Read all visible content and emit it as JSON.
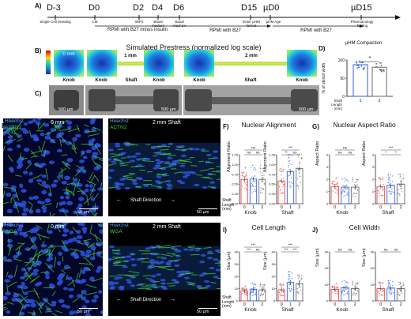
{
  "panelA": {
    "label": "A)",
    "timepoints": [
      {
        "label": "D-3",
        "sub": "Single Cell Seeding"
      },
      {
        "label": "D0",
        "sub": "CM"
      },
      {
        "label": "D2",
        "sub": "IWP2"
      },
      {
        "label": "D4",
        "sub": "Basal medium"
      },
      {
        "label": "D6",
        "sub": "Basal medium"
      },
      {
        "label": "D15",
        "sub": "Enter µHM format"
      },
      {
        "label": "µD0",
        "sub": "µHM Age"
      },
      {
        "label": "µD15",
        "sub": "Pharmacology Testing"
      }
    ],
    "media": [
      "RPMI with B27 minus insulin",
      "RPMI with B27",
      "RPMI with B27"
    ]
  },
  "panelB": {
    "label": "B)",
    "title": "Simulated Prestress (normalized log scale)",
    "labels": [
      "0 mm",
      "1 mm",
      "2 mm"
    ],
    "parts": [
      "Knob",
      "Knob",
      "Shaft",
      "Knob",
      "Knob",
      "Shaft",
      "Knob"
    ]
  },
  "panelC": {
    "label": "C)",
    "scales": [
      "500 µm",
      "500 µm",
      "500 µm"
    ]
  },
  "panelD": {
    "label": "D)",
    "title": "µHM Compaction",
    "ylabel": "% of stencil width",
    "xlabel": "Shaft Length (mm)",
    "sig": "*",
    "categories": [
      "1",
      "2"
    ],
    "values": [
      87,
      80
    ],
    "yticks": [
      "0",
      "50",
      "100"
    ]
  },
  "panelE": {
    "label": "E)",
    "left": {
      "stain1": "Hoechst",
      "stain2": "ACTN2",
      "title": "0 mm",
      "scale": "50 µm"
    },
    "right": {
      "stain1": "Hoechst",
      "stain2": "ACTN2",
      "title": "2 mm Shaft",
      "note": "Shaft Direction",
      "scale": "50 µm"
    }
  },
  "panelH": {
    "label": "H)",
    "left": {
      "stain1": "Hoechst",
      "stain2": "WGA",
      "title": "0 mm",
      "scale": "50 µm"
    },
    "right": {
      "stain1": "Hoechst",
      "stain2": "WGA",
      "title": "2 mm Shaft",
      "note": "Shaft Direction",
      "scale": "50 µm"
    }
  },
  "panelF": {
    "label": "F)",
    "title": "Nuclear Alignment",
    "ylabel": "Alignment Ratio",
    "groups": [
      "Knob",
      "Shaft"
    ],
    "xlabel": "Shaft Length (mm)"
  },
  "panelG": {
    "label": "G)",
    "title": "Nuclear Aspect Ratio",
    "ylabel": "Aspect Ratio",
    "groups": [
      "Knob",
      "Shaft"
    ]
  },
  "panelI": {
    "label": "I)",
    "title": "Cell Length",
    "ylabel": "Size (µm)",
    "groups": [
      "Knob",
      "Shaft"
    ],
    "xlabel": "Shaft Length (mm)"
  },
  "panelJ": {
    "label": "J)",
    "title": "Cell Width",
    "ylabel": "Size (µm)",
    "groups": [
      "Knob",
      "Shaft"
    ]
  },
  "chart_data": [
    {
      "type": "bar",
      "panel": "D",
      "title": "µHM Compaction",
      "categories": [
        "1",
        "2"
      ],
      "values": [
        87,
        80
      ],
      "ylabel": "% of stencil width",
      "xlabel": "Shaft Length (mm)",
      "ylim": [
        0,
        100
      ]
    },
    {
      "type": "bar",
      "panel": "F-Knob",
      "categories": [
        "0",
        "1",
        "2"
      ],
      "values": [
        0.62,
        0.63,
        0.62
      ],
      "ylim": [
        0,
        1.25
      ],
      "yticks": [
        "0.00",
        "0.25",
        "0.50",
        "0.75",
        "1.00",
        "1.25"
      ],
      "sig": [
        "ns",
        "ns",
        "ns"
      ]
    },
    {
      "type": "bar",
      "panel": "F-Shaft",
      "categories": [
        "0",
        "1",
        "2"
      ],
      "values": [
        0.58,
        0.82,
        0.9
      ],
      "ylim": [
        0,
        1.25
      ],
      "yticks": [
        "0.00",
        "0.25",
        "0.50",
        "0.75",
        "1.00",
        "1.25"
      ],
      "sig": [
        "**",
        "ns",
        "***"
      ]
    },
    {
      "type": "bar",
      "panel": "G-Knob",
      "categories": [
        "0",
        "1",
        "2"
      ],
      "values": [
        1.4,
        1.35,
        1.35
      ],
      "ylim": [
        0,
        4
      ],
      "yticks": [
        "0",
        "1",
        "2",
        "3",
        "4"
      ],
      "sig": [
        "ns",
        "ns",
        "ns"
      ]
    },
    {
      "type": "bar",
      "panel": "G-Shaft",
      "categories": [
        "0",
        "1",
        "2"
      ],
      "values": [
        1.4,
        1.5,
        1.6
      ],
      "ylim": [
        0,
        4
      ],
      "yticks": [
        "0",
        "1",
        "2",
        "3",
        "4"
      ],
      "sig": [
        "*",
        "*",
        "***"
      ]
    },
    {
      "type": "bar",
      "panel": "I-Knob",
      "categories": [
        "0",
        "1",
        "2"
      ],
      "values": [
        8,
        9.5,
        9
      ],
      "ylim": [
        0,
        40
      ],
      "yticks": [
        "0",
        "10",
        "20",
        "30",
        "40"
      ],
      "sig": [
        "***",
        "ns",
        "***"
      ]
    },
    {
      "type": "bar",
      "panel": "I-Shaft",
      "categories": [
        "0",
        "1",
        "2"
      ],
      "values": [
        9,
        15,
        14
      ],
      "ylim": [
        0,
        40
      ],
      "yticks": [
        "0",
        "10",
        "20",
        "30",
        "40"
      ],
      "sig": [
        "***",
        "***",
        "***"
      ]
    },
    {
      "type": "bar",
      "panel": "J-Knob",
      "categories": [
        "0",
        "1",
        "2"
      ],
      "values": [
        7,
        8,
        7.5
      ],
      "ylim": [
        0,
        30
      ],
      "yticks": [
        "0",
        "10",
        "20",
        "30"
      ],
      "sig": [
        "ns",
        "ns"
      ]
    },
    {
      "type": "bar",
      "panel": "J-Shaft",
      "categories": [
        "0",
        "1",
        "2"
      ],
      "values": [
        7.5,
        7.8,
        7.5
      ],
      "ylim": [
        0,
        30
      ],
      "yticks": [
        "0",
        "10",
        "20",
        "30"
      ],
      "sig": [
        "ns",
        "ns"
      ]
    }
  ],
  "colors": {
    "c0": "#e84545",
    "c1": "#2f5fe0",
    "c2": "#6a6a6a"
  }
}
